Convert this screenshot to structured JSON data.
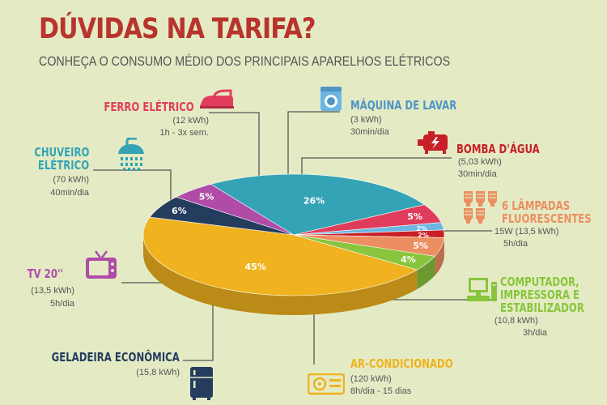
{
  "header": {
    "title": "DÚVIDAS NA TARIFA?",
    "subtitle": "CONHEÇA O CONSUMO MÉDIO DOS PRINCIPAIS APARELHOS ELÉTRICOS"
  },
  "chart_data": {
    "type": "pie",
    "title": "DÚVIDAS NA TARIFA?",
    "subtitle": "CONHEÇA O CONSUMO MÉDIO DOS PRINCIPAIS APARELHOS ELÉTRICOS",
    "slices": [
      {
        "name": "AR-CONDICIONADO",
        "label": "45%",
        "value": 45,
        "color": "#f0b21e",
        "kwh": "(120 kWh)",
        "usage": "8h/dia - 15 dias"
      },
      {
        "name": "GELADEIRA ECONÔMICA",
        "label": "6%",
        "value": 6,
        "color": "#243c5e",
        "kwh": "(15,8 kWh)",
        "usage": ""
      },
      {
        "name": "TV 20''",
        "label": "5%",
        "value": 5,
        "color": "#b04ca8",
        "kwh": "(13,5 kWh)",
        "usage": "5h/dia"
      },
      {
        "name": "CHUVEIRO ELÉTRICO",
        "label": "26%",
        "value": 26,
        "color": "#33a3b5",
        "kwh": "(70 kWh)",
        "usage": "40min/dia"
      },
      {
        "name": "FERRO ELÉTRICO",
        "label": "5%",
        "value": 5,
        "color": "#e23c5c",
        "kwh": "(12 kWh)",
        "usage": "1h - 3x sem."
      },
      {
        "name": "MÁQUINA DE LAVAR",
        "label": "2%",
        "value": 2,
        "color": "#6cb6e2",
        "kwh": "(3 kWh)",
        "usage": "30min/dia"
      },
      {
        "name": "BOMBA D'ÁGUA",
        "label": "2%",
        "value": 2,
        "color": "#c81e26",
        "kwh": "(5,03 kWh)",
        "usage": "30min/dia"
      },
      {
        "name": "6 LÂMPADAS FLUORESCENTES",
        "label": "5%",
        "value": 5,
        "color": "#ec8e60",
        "kwh": "15W (13,5 kWh)",
        "usage": "5h/dia"
      },
      {
        "name": "COMPUTADOR, IMPRESSORA E ESTABILIZADOR",
        "label": "4%",
        "value": 4,
        "color": "#88c53c",
        "kwh": "(10,8 kWh)",
        "usage": "3h/dia"
      }
    ]
  },
  "labels": {
    "ferro": {
      "l1": "FERRO ELÉTRICO",
      "s1": "(12 kWh)",
      "s2": "1h - 3x sem."
    },
    "maquina": {
      "l1": "MÁQUINA DE LAVAR",
      "s1": "(3 kWh)",
      "s2": "30min/dia"
    },
    "bomba": {
      "l1": "BOMBA D'ÁGUA",
      "s1": "(5,03 kWh)",
      "s2": "30min/dia"
    },
    "chuveiro": {
      "l1": "CHUVEIRO",
      "l2": "ELÉTRICO",
      "s1": "(70 kWh)",
      "s2": "40min/dia"
    },
    "lampadas": {
      "l1": "6 LÂMPADAS",
      "l2": "FLUORESCENTES",
      "s1": "15W (13,5 kWh)",
      "s2": "5h/dia"
    },
    "tv": {
      "l1": "TV 20''",
      "s1": "(13,5 kWh)",
      "s2": "5h/dia"
    },
    "computador": {
      "l1": "COMPUTADOR,",
      "l2": "IMPRESSORA E",
      "l3": "ESTABILIZADOR",
      "s1": "(10,8 kWh)",
      "s2": "3h/dia"
    },
    "geladeira": {
      "l1": "GELADEIRA ECONÔMICA",
      "s1": "(15,8 kWh)"
    },
    "ar": {
      "l1": "AR-CONDICIONADO",
      "s1": "(120 kWh)",
      "s2": "8h/dia - 15 dias"
    }
  },
  "icons": {
    "ferro": "iron-icon",
    "maquina": "washing-machine-icon",
    "bomba": "water-pump-icon",
    "chuveiro": "shower-icon",
    "lampadas": "fluorescent-lamps-icon",
    "tv": "tv-icon",
    "computador": "computer-icon",
    "geladeira": "refrigerator-icon",
    "ar": "air-conditioner-icon"
  }
}
